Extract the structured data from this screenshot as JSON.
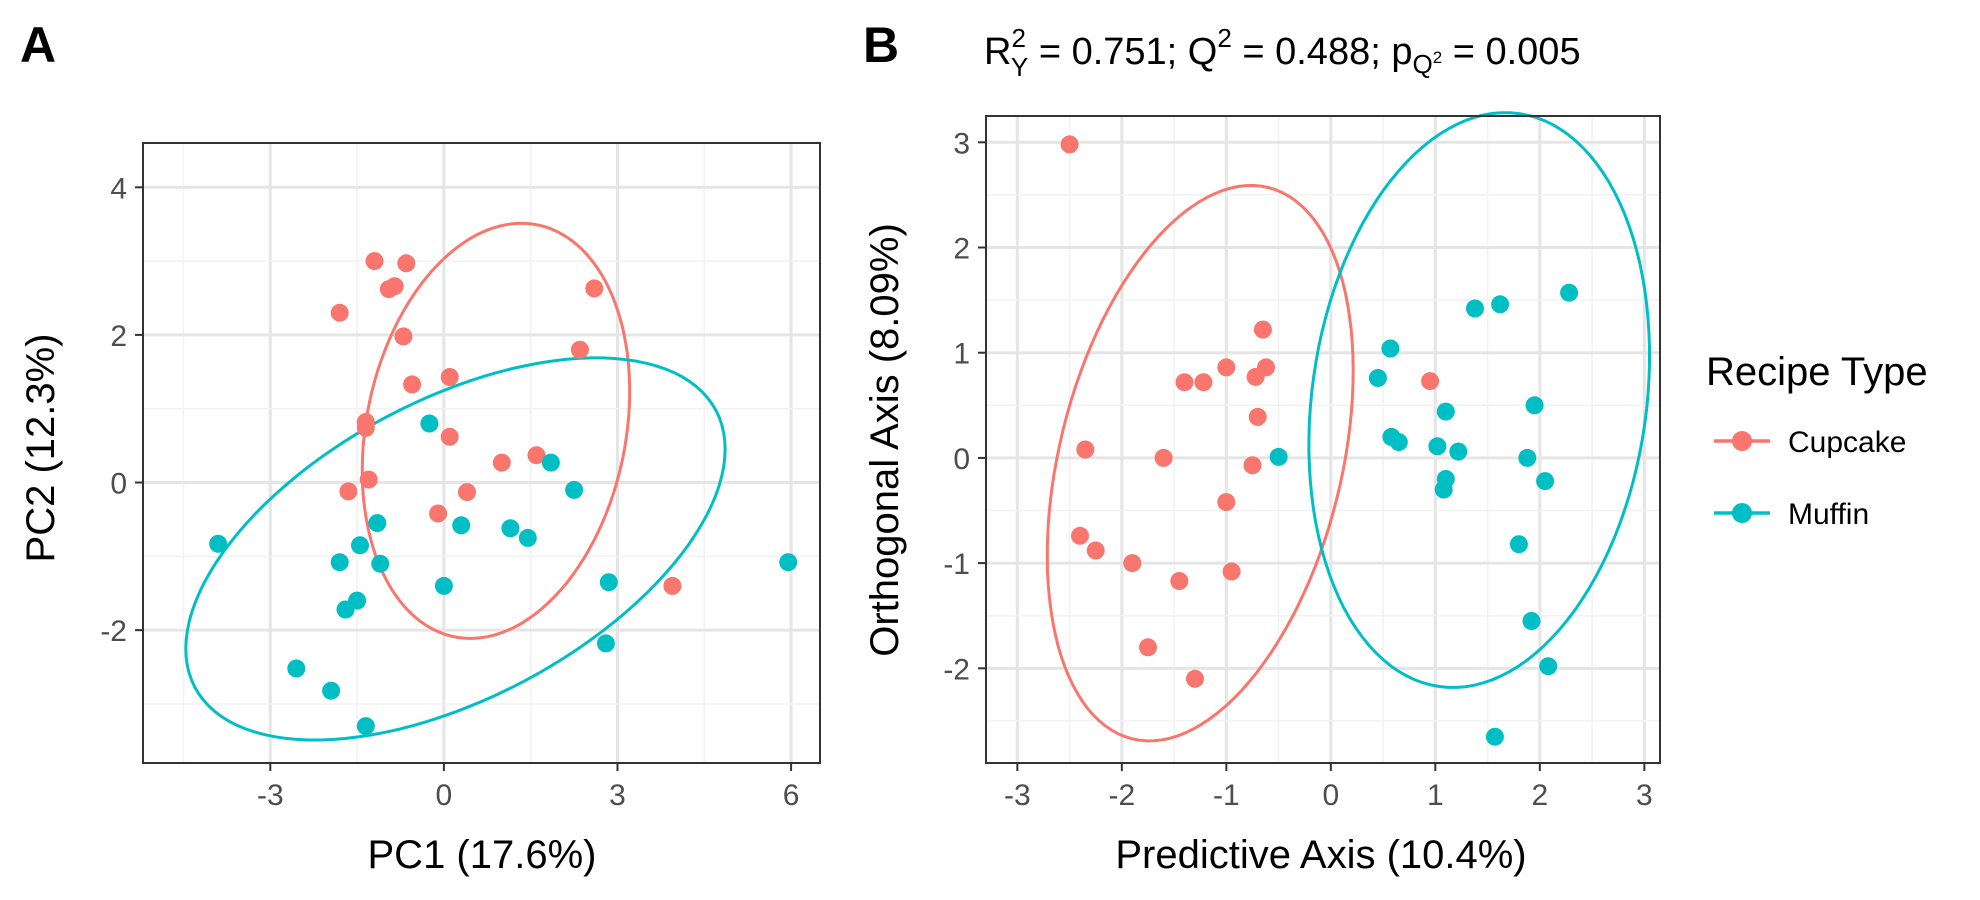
{
  "colors": {
    "Cupcake": "#F8766D",
    "Muffin": "#00BFC4"
  },
  "legend": {
    "title": "Recipe Type",
    "items": [
      {
        "label": "Cupcake",
        "key": "Cupcake"
      },
      {
        "label": "Muffin",
        "key": "Muffin"
      }
    ]
  },
  "chart_data": [
    {
      "panel": "A",
      "type": "scatter",
      "title": "",
      "xlabel": "PC1 (17.6%)",
      "ylabel": "PC2 (12.3%)",
      "xlim": [
        -5.2,
        6.5
      ],
      "ylim": [
        -3.8,
        4.6
      ],
      "xticks": [
        -3,
        0,
        3,
        6
      ],
      "xtick_labels": [
        "-3",
        "0",
        "3",
        "6"
      ],
      "yticks": [
        -2,
        0,
        2,
        4
      ],
      "ytick_labels": [
        "-2",
        "0",
        "2",
        "4"
      ],
      "grid": true,
      "series": [
        {
          "name": "Cupcake",
          "points": [
            [
              -1.2,
              3.0
            ],
            [
              -0.65,
              2.97
            ],
            [
              -0.85,
              2.66
            ],
            [
              -0.95,
              2.62
            ],
            [
              -1.8,
              2.3
            ],
            [
              -0.7,
              1.98
            ],
            [
              2.6,
              2.63
            ],
            [
              2.35,
              1.8
            ],
            [
              0.1,
              1.43
            ],
            [
              -0.55,
              1.33
            ],
            [
              -1.35,
              0.82
            ],
            [
              -1.35,
              0.74
            ],
            [
              0.1,
              0.62
            ],
            [
              1.6,
              0.37
            ],
            [
              1.0,
              0.27
            ],
            [
              -1.3,
              0.04
            ],
            [
              -1.65,
              -0.12
            ],
            [
              0.4,
              -0.13
            ],
            [
              -0.1,
              -0.42
            ],
            [
              3.95,
              -1.4
            ]
          ],
          "ellipse": {
            "center": [
              0.9,
              0.7
            ],
            "semi_axes": [
              2.9,
              2.2
            ],
            "angle_deg": 68
          }
        },
        {
          "name": "Muffin",
          "points": [
            [
              -3.9,
              -0.83
            ],
            [
              -0.25,
              0.8
            ],
            [
              1.85,
              0.27
            ],
            [
              2.25,
              -0.1
            ],
            [
              -1.15,
              -0.55
            ],
            [
              -1.45,
              -0.85
            ],
            [
              -1.8,
              -1.08
            ],
            [
              -1.1,
              -1.1
            ],
            [
              0.3,
              -0.58
            ],
            [
              1.15,
              -0.62
            ],
            [
              1.45,
              -0.75
            ],
            [
              0.0,
              -1.4
            ],
            [
              -1.5,
              -1.6
            ],
            [
              -1.7,
              -1.72
            ],
            [
              2.85,
              -1.35
            ],
            [
              2.8,
              -2.18
            ],
            [
              -2.55,
              -2.52
            ],
            [
              -1.95,
              -2.82
            ],
            [
              -1.35,
              -3.3
            ],
            [
              5.95,
              -1.08
            ]
          ],
          "ellipse": {
            "center": [
              0.2,
              -0.9
            ],
            "semi_axes": [
              4.9,
              2.1
            ],
            "angle_deg": 20
          }
        }
      ]
    },
    {
      "panel": "B",
      "type": "scatter",
      "title": "R²Y = 0.751; Q² = 0.488; pQ² = 0.005",
      "title_parts": {
        "r_base": "R",
        "r_sup": "2",
        "r_sub": "Y",
        "r_rest": " = 0.751; ",
        "q_base": "Q",
        "q_sup": "2",
        "q_rest": " = 0.488; ",
        "p_base": "p",
        "p_sub_base": "Q",
        "p_sub_sup": "2",
        "p_rest": " = 0.005"
      },
      "xlabel": "Predictive Axis (10.4%)",
      "ylabel": "Orthogonal Axis (8.09%)",
      "xlim": [
        -3.3,
        3.15
      ],
      "ylim": [
        -2.9,
        3.25
      ],
      "xticks": [
        -3,
        -2,
        -1,
        0,
        1,
        2,
        3
      ],
      "xtick_labels": [
        "-3",
        "-2",
        "-1",
        "0",
        "1",
        "2",
        "3"
      ],
      "yticks": [
        -2,
        -1,
        0,
        1,
        2,
        3
      ],
      "ytick_labels": [
        "-2",
        "-1",
        "0",
        "1",
        "2",
        "3"
      ],
      "grid": true,
      "series": [
        {
          "name": "Cupcake",
          "points": [
            [
              -2.5,
              2.98
            ],
            [
              -0.65,
              1.22
            ],
            [
              -0.62,
              0.86
            ],
            [
              -0.72,
              0.77
            ],
            [
              -1.4,
              0.72
            ],
            [
              -1.22,
              0.72
            ],
            [
              -1.0,
              0.86
            ],
            [
              -0.7,
              0.39
            ],
            [
              -2.35,
              0.08
            ],
            [
              -1.6,
              0.0
            ],
            [
              -0.75,
              -0.07
            ],
            [
              0.95,
              0.73
            ],
            [
              -1.0,
              -0.42
            ],
            [
              -2.4,
              -0.74
            ],
            [
              -2.25,
              -0.88
            ],
            [
              -1.9,
              -1.0
            ],
            [
              -0.95,
              -1.08
            ],
            [
              -1.45,
              -1.17
            ],
            [
              -1.75,
              -1.8
            ],
            [
              -1.3,
              -2.1
            ]
          ],
          "ellipse": {
            "center": [
              -1.25,
              -0.05
            ],
            "semi_axes": [
              2.7,
              1.35
            ],
            "angle_deg": 76
          }
        },
        {
          "name": "Muffin",
          "points": [
            [
              2.28,
              1.57
            ],
            [
              1.62,
              1.46
            ],
            [
              1.38,
              1.42
            ],
            [
              0.57,
              1.04
            ],
            [
              0.45,
              0.76
            ],
            [
              1.95,
              0.5
            ],
            [
              1.1,
              0.44
            ],
            [
              0.58,
              0.2
            ],
            [
              0.65,
              0.15
            ],
            [
              1.02,
              0.11
            ],
            [
              1.22,
              0.06
            ],
            [
              1.88,
              0.0
            ],
            [
              -0.5,
              0.01
            ],
            [
              1.1,
              -0.2
            ],
            [
              2.05,
              -0.22
            ],
            [
              1.08,
              -0.3
            ],
            [
              1.8,
              -0.82
            ],
            [
              1.92,
              -1.55
            ],
            [
              2.08,
              -1.98
            ],
            [
              1.57,
              -2.65
            ]
          ],
          "ellipse": {
            "center": [
              1.42,
              0.55
            ],
            "semi_axes": [
              2.75,
              1.6
            ],
            "angle_deg": 82
          }
        }
      ]
    }
  ]
}
